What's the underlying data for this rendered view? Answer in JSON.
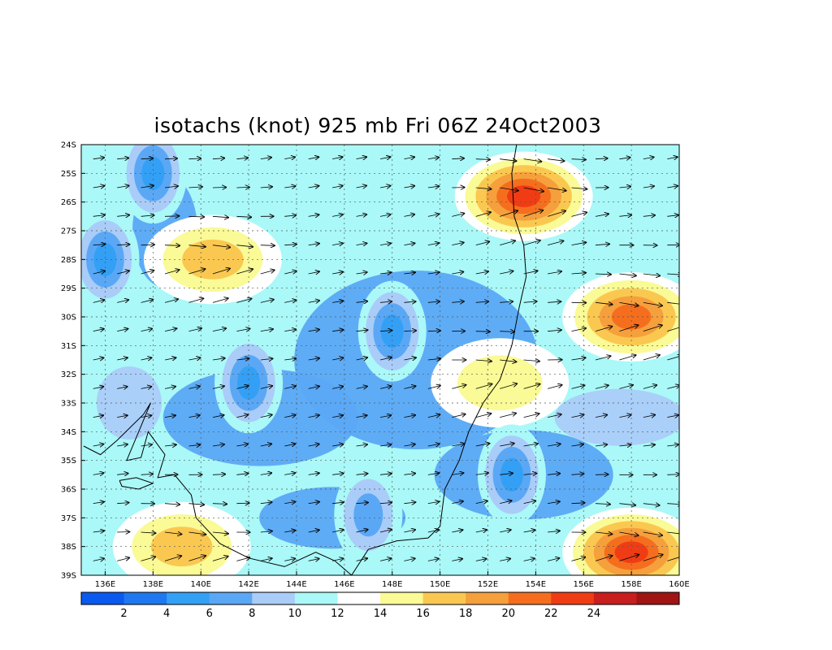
{
  "title": "isotachs (knot) 925 mb Fri 06Z 24Oct2003",
  "lat_labels": [
    "24S",
    "25S",
    "26S",
    "27S",
    "28S",
    "29S",
    "30S",
    "31S",
    "32S",
    "33S",
    "34S",
    "35S",
    "36S",
    "37S",
    "38S",
    "39S"
  ],
  "lon_labels": [
    "136E",
    "138E",
    "140E",
    "142E",
    "144E",
    "146E",
    "148E",
    "150E",
    "152E",
    "154E",
    "156E",
    "158E",
    "160E"
  ],
  "colorbar": {
    "labels": [
      "2",
      "4",
      "6",
      "8",
      "10",
      "12",
      "14",
      "16",
      "18",
      "20",
      "22",
      "24"
    ],
    "colors": [
      "#0a5af0",
      "#1e78f0",
      "#33a0f5",
      "#5aa8f5",
      "#aaccf8",
      "#aaf8f8",
      "#ffffff",
      "#fafa96",
      "#fac850",
      "#f5a03c",
      "#f56e1e",
      "#f03c14",
      "#c81e1e",
      "#a01414"
    ]
  },
  "colors": {
    "land_outline": "#000000",
    "arrow": "#000000",
    "grid": "#555555"
  },
  "map_data": {
    "type": "filled-contour",
    "variable": "isotachs",
    "units": "knot",
    "level": "925 mb",
    "time": "Fri 06Z 24Oct2003",
    "lon_range": [
      135,
      160
    ],
    "lat_range": [
      -39,
      -24
    ],
    "contour_levels": [
      2,
      4,
      6,
      8,
      10,
      12,
      14,
      16,
      18,
      20,
      22,
      24
    ],
    "features": [
      {
        "kind": "max",
        "lon": 153.5,
        "lat": -25.8,
        "value": 22
      },
      {
        "kind": "max",
        "lon": 158.0,
        "lat": -30.0,
        "value": 21
      },
      {
        "kind": "max",
        "lon": 158.0,
        "lat": -38.2,
        "value": 22
      },
      {
        "kind": "max",
        "lon": 140.5,
        "lat": -28.0,
        "value": 16
      },
      {
        "kind": "max",
        "lon": 139.2,
        "lat": -38.0,
        "value": 16
      },
      {
        "kind": "max",
        "lon": 152.5,
        "lat": -32.3,
        "value": 15
      },
      {
        "kind": "min",
        "lon": 148.0,
        "lat": -30.5,
        "value": 3
      },
      {
        "kind": "min",
        "lon": 142.0,
        "lat": -32.3,
        "value": 4
      },
      {
        "kind": "min",
        "lon": 138.0,
        "lat": -25.0,
        "value": 4
      },
      {
        "kind": "min",
        "lon": 153.0,
        "lat": -35.5,
        "value": 4
      },
      {
        "kind": "min",
        "lon": 136.0,
        "lat": -28.0,
        "value": 4
      },
      {
        "kind": "min",
        "lon": 147.0,
        "lat": -36.9,
        "value": 5
      }
    ]
  }
}
